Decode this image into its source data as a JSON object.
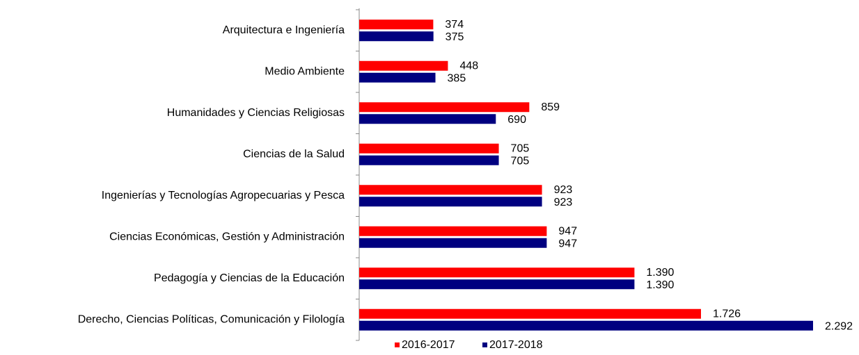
{
  "chart_data": {
    "type": "hbar",
    "categories": [
      "Arquitectura e Ingeniería",
      "Medio Ambiente",
      "Humanidades y Ciencias Religiosas",
      "Ciencias de la Salud",
      "Ingenierías y Tecnologías Agropecuarias y Pesca",
      "Ciencias Económicas, Gestión y Administración",
      "Pedagogía y Ciencias de la Educación",
      "Derecho, Ciencias Políticas, Comunicación y Filología"
    ],
    "series": [
      {
        "name": "2016-2017",
        "color": "#ff0000",
        "values": [
          374,
          448,
          859,
          705,
          923,
          947,
          1390,
          1726
        ],
        "value_labels": [
          "374",
          "448",
          "859",
          "705",
          "923",
          "947",
          "1.390",
          "1.726"
        ]
      },
      {
        "name": "2017-2018",
        "color": "#000080",
        "values": [
          375,
          385,
          690,
          705,
          923,
          947,
          1390,
          2292
        ],
        "value_labels": [
          "375",
          "385",
          "690",
          "705",
          "923",
          "947",
          "1.390",
          "2.292"
        ]
      }
    ],
    "legend": "bottom"
  }
}
